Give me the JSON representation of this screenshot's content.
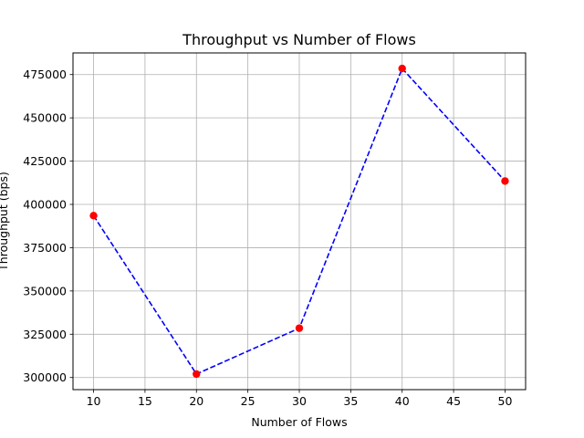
{
  "chart_data": {
    "type": "line",
    "title": "Throughput vs Number of Flows",
    "xlabel": "Number of Flows",
    "ylabel": "Throughput (bps)",
    "x": [
      10,
      20,
      30,
      40,
      50
    ],
    "series": [
      {
        "values": [
          393500,
          302000,
          328500,
          478500,
          413500
        ],
        "line_color": "#0000ff",
        "line_style": "dashed",
        "marker_color": "#ff0000",
        "marker": "circle"
      }
    ],
    "xlim": [
      8,
      52
    ],
    "ylim": [
      293000,
      487500
    ],
    "xticks": [
      10,
      15,
      20,
      25,
      30,
      35,
      40,
      45,
      50
    ],
    "xtick_labels": [
      "10",
      "15",
      "20",
      "25",
      "30",
      "35",
      "40",
      "45",
      "50"
    ],
    "yticks": [
      300000,
      325000,
      350000,
      375000,
      400000,
      425000,
      450000,
      475000
    ],
    "ytick_labels": [
      "300000",
      "325000",
      "350000",
      "375000",
      "400000",
      "425000",
      "450000",
      "475000"
    ],
    "grid": true
  }
}
